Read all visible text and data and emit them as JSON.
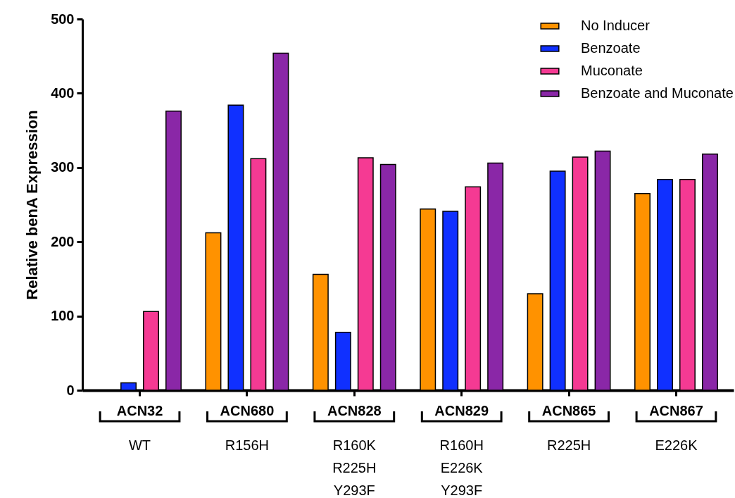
{
  "chart_data": {
    "type": "bar",
    "ylabel": "Relative benA Expression",
    "categories": [
      "ACN32\nWT",
      "ACN680\nR156H",
      "ACN828\nR160K\nR225H\nY293F",
      "ACN829\nR160H\nE226K\nY293F",
      "ACN865\nR225H",
      "ACN867\nE226K"
    ],
    "series": [
      {
        "name": "No Inducer",
        "color": "#ff9200",
        "values": [
          null,
          212,
          156,
          244,
          130,
          265
        ]
      },
      {
        "name": "Benzoate",
        "color": "#1030ff",
        "values": [
          10,
          384,
          78,
          241,
          295,
          284
        ]
      },
      {
        "name": "Muconate",
        "color": "#f53a93",
        "values": [
          106,
          312,
          313,
          274,
          314,
          284
        ]
      },
      {
        "name": "Benzoate and Muconate",
        "color": "#8a27a7",
        "values": [
          376,
          454,
          304,
          306,
          322,
          318
        ]
      }
    ],
    "ylim": [
      0,
      500
    ],
    "yticks": [
      0,
      100,
      200,
      300,
      400,
      500
    ],
    "grid": false,
    "legend": "top right"
  }
}
